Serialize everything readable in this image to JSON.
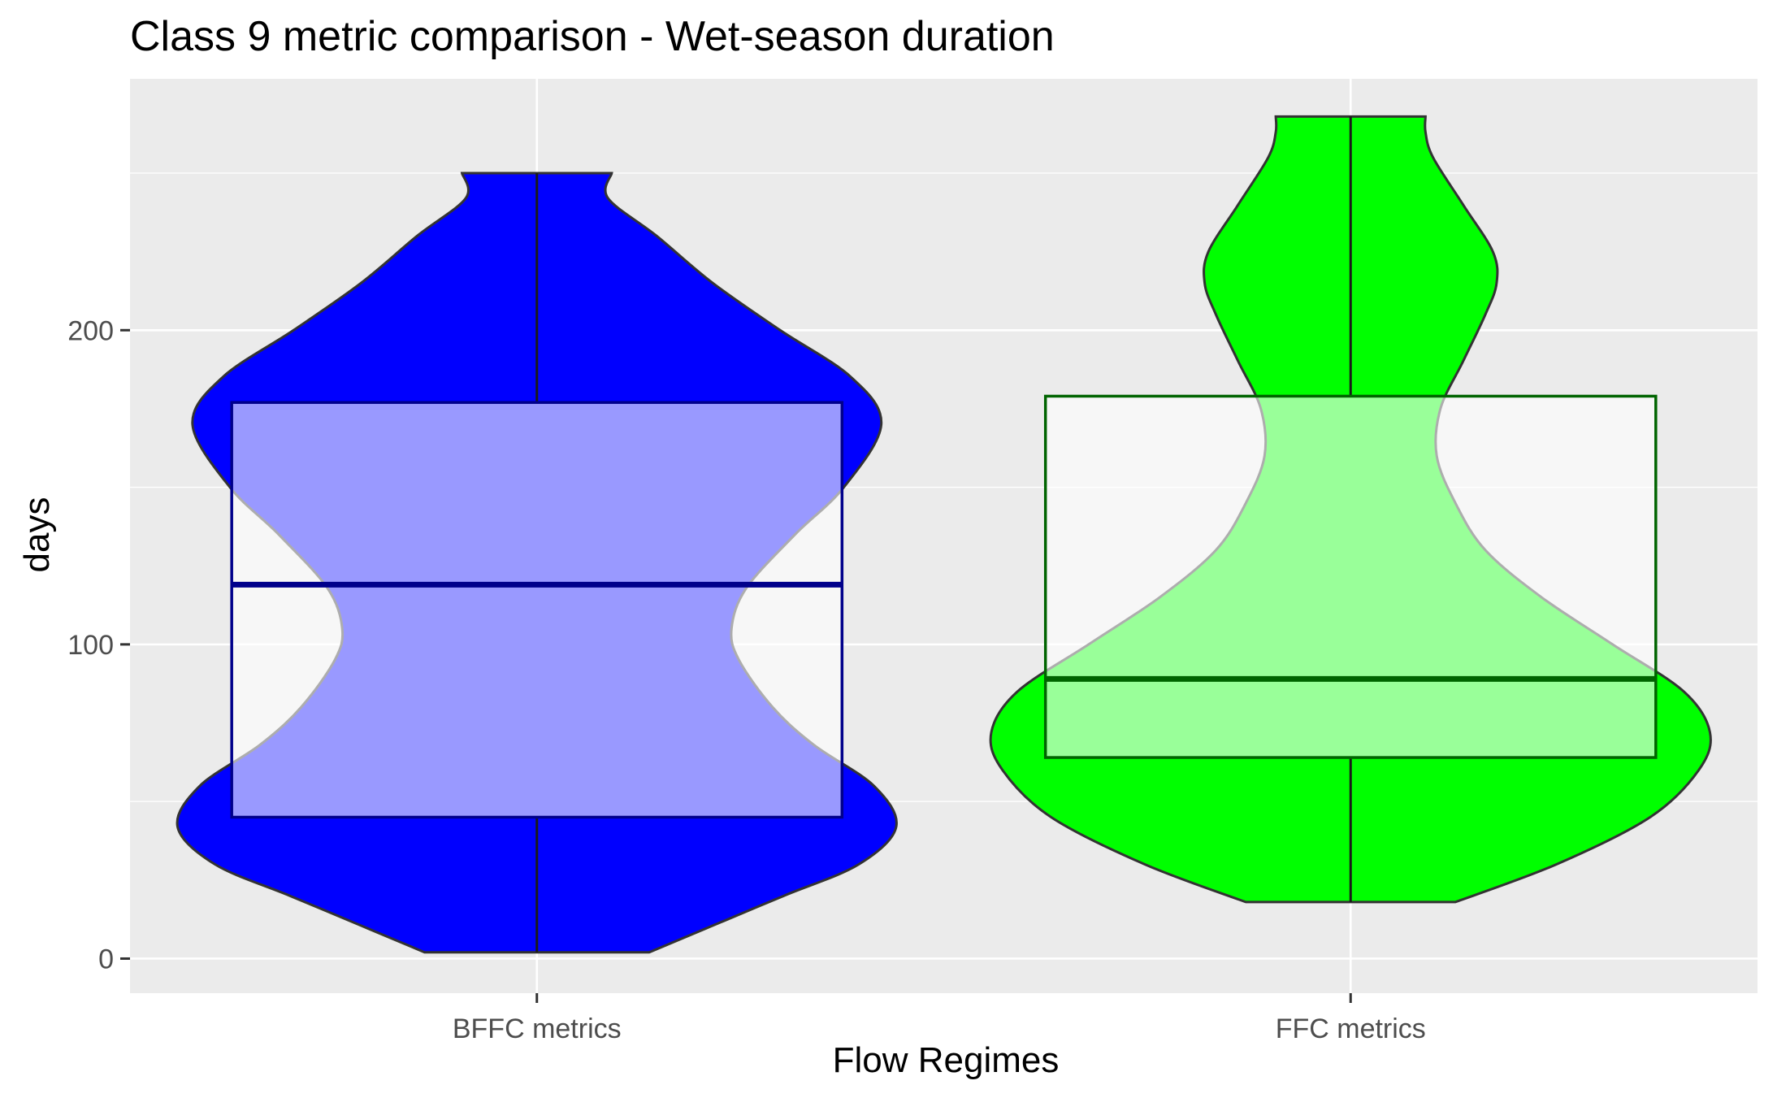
{
  "chart_data": {
    "type": "violin",
    "title": "Class 9 metric comparison - Wet-season duration",
    "xlabel": "Flow Regimes",
    "ylabel": "days",
    "categories": [
      "BFFC metrics",
      "FFC metrics"
    ],
    "ylim": [
      -11,
      280
    ],
    "yticks": [
      0,
      100,
      200
    ],
    "grid": true,
    "legend": "none",
    "colors": {
      "panel": "#ebebeb",
      "grid": "#ffffff",
      "violin_outline": "#333333",
      "box_fill": "#ffffff"
    },
    "series": [
      {
        "category": "BFFC metrics",
        "fill": "#0000ff",
        "box_line": "#00008b",
        "box": {
          "min": 2,
          "q1": 45,
          "median": 119,
          "q3": 177,
          "max": 250
        },
        "density": [
          [
            2,
            0.3
          ],
          [
            10,
            0.46
          ],
          [
            20,
            0.66
          ],
          [
            30,
            0.86
          ],
          [
            42,
            0.96
          ],
          [
            55,
            0.9
          ],
          [
            68,
            0.74
          ],
          [
            80,
            0.63
          ],
          [
            95,
            0.54
          ],
          [
            105,
            0.52
          ],
          [
            118,
            0.56
          ],
          [
            135,
            0.69
          ],
          [
            150,
            0.82
          ],
          [
            170,
            0.92
          ],
          [
            185,
            0.84
          ],
          [
            200,
            0.65
          ],
          [
            215,
            0.47
          ],
          [
            230,
            0.32
          ],
          [
            242,
            0.19
          ],
          [
            250,
            0.2
          ]
        ]
      },
      {
        "category": "FFC metrics",
        "fill": "#00ff00",
        "box_line": "#006400",
        "box": {
          "min": 18,
          "q1": 64,
          "median": 89,
          "q3": 179,
          "max": 268
        },
        "density": [
          [
            18,
            0.28
          ],
          [
            30,
            0.55
          ],
          [
            45,
            0.8
          ],
          [
            60,
            0.93
          ],
          [
            72,
            0.96
          ],
          [
            85,
            0.89
          ],
          [
            100,
            0.7
          ],
          [
            115,
            0.51
          ],
          [
            130,
            0.36
          ],
          [
            145,
            0.28
          ],
          [
            160,
            0.23
          ],
          [
            175,
            0.24
          ],
          [
            190,
            0.3
          ],
          [
            205,
            0.36
          ],
          [
            215,
            0.39
          ],
          [
            225,
            0.38
          ],
          [
            240,
            0.3
          ],
          [
            255,
            0.22
          ],
          [
            263,
            0.2
          ],
          [
            268,
            0.2
          ]
        ]
      }
    ]
  }
}
